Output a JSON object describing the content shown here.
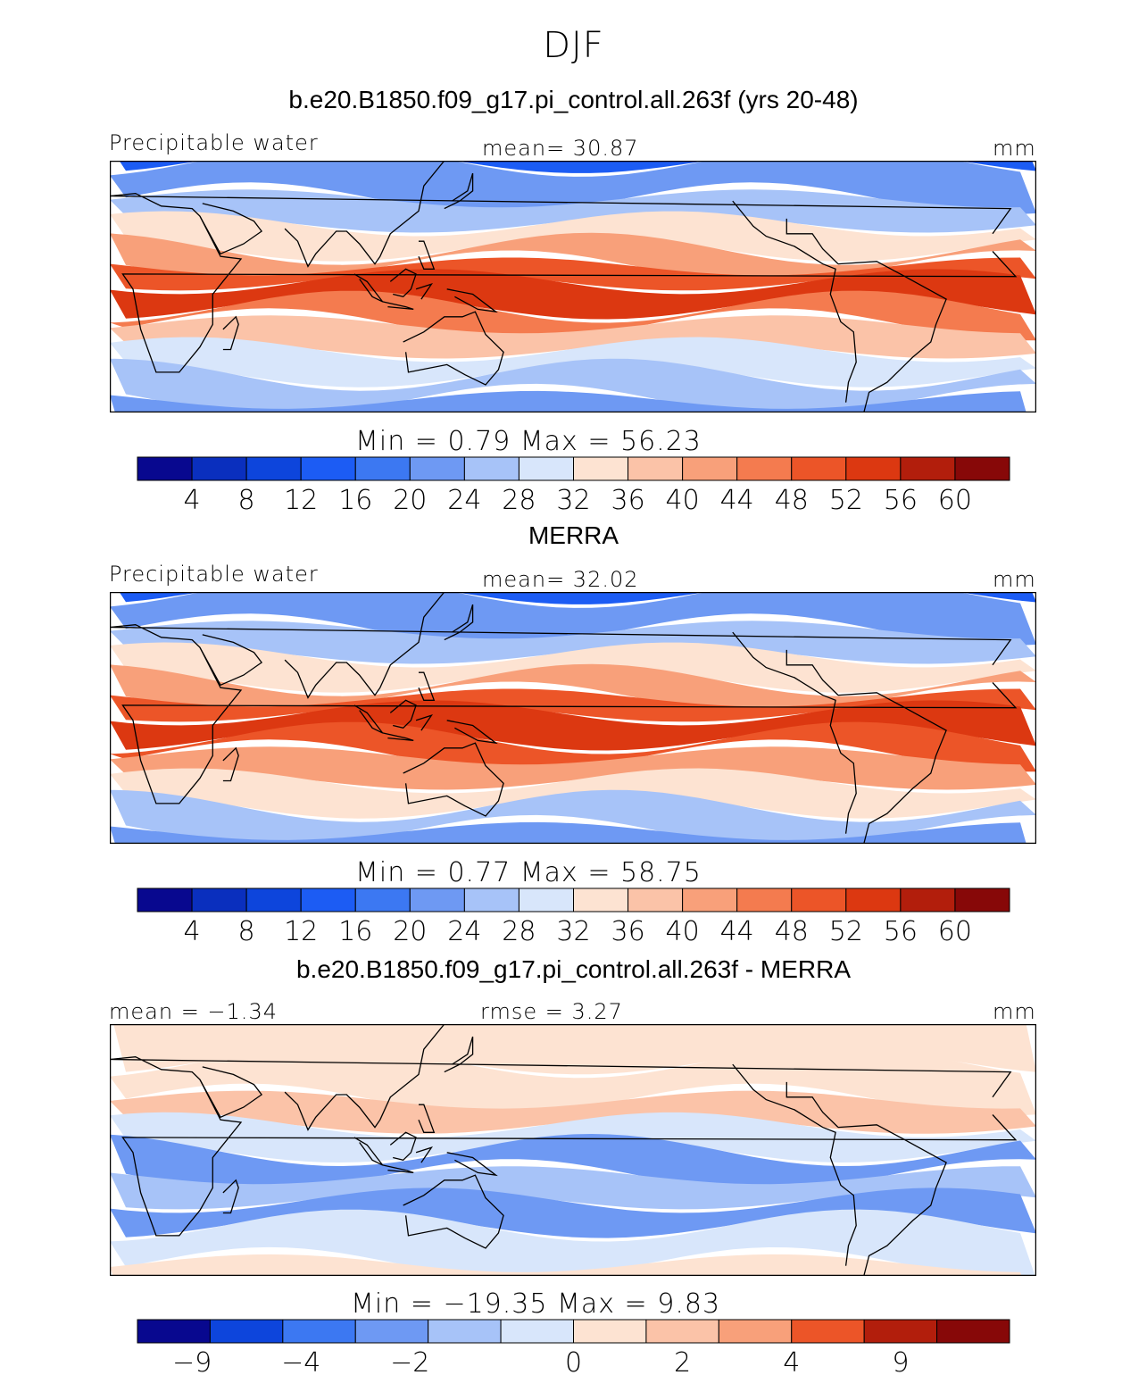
{
  "page_title": "DJF",
  "chart_data": [
    {
      "type": "heatmap",
      "title": "b.e20.B1850.f09_g17.pi_control.all.263f (yrs 20-48)",
      "variable": "Precipitable water",
      "units": "mm",
      "stat_left": "",
      "stat_center": "mean=   30.87",
      "min_max": "Min  =     0.79  Max  =    56.23",
      "levels": [
        "4",
        "8",
        "12",
        "16",
        "20",
        "24",
        "28",
        "32",
        "36",
        "40",
        "44",
        "48",
        "52",
        "56",
        "60"
      ],
      "colors": [
        "#08088f",
        "#0a2fbe",
        "#0d45dc",
        "#1c5cf4",
        "#3c78f2",
        "#6e99f3",
        "#a7c3f8",
        "#d8e6fb",
        "#fde3d2",
        "#fbc3a8",
        "#f8a07a",
        "#f47b4f",
        "#ec5528",
        "#dc3811",
        "#b21e0c",
        "#870808"
      ],
      "bands": [
        {
          "lat": 90,
          "color": 2
        },
        {
          "lat": 70,
          "color": 3
        },
        {
          "lat": 50,
          "color": 5
        },
        {
          "lat": 35,
          "color": 6
        },
        {
          "lat": 25,
          "color": 8
        },
        {
          "lat": 15,
          "color": 10
        },
        {
          "lat": 8,
          "color": 12
        },
        {
          "lat": 2,
          "color": 13
        },
        {
          "lat": -8,
          "color": 11
        },
        {
          "lat": -15,
          "color": 9
        },
        {
          "lat": -25,
          "color": 7
        },
        {
          "lat": -35,
          "color": 6
        },
        {
          "lat": -45,
          "color": 5
        }
      ]
    },
    {
      "type": "heatmap",
      "title": "MERRA",
      "variable": "Precipitable water",
      "units": "mm",
      "stat_left": "",
      "stat_center": "mean=   32.02",
      "min_max": "Min  =     0.77  Max  =    58.75",
      "levels": [
        "4",
        "8",
        "12",
        "16",
        "20",
        "24",
        "28",
        "32",
        "36",
        "40",
        "44",
        "48",
        "52",
        "56",
        "60"
      ],
      "colors": [
        "#08088f",
        "#0a2fbe",
        "#0d45dc",
        "#1c5cf4",
        "#3c78f2",
        "#6e99f3",
        "#a7c3f8",
        "#d8e6fb",
        "#fde3d2",
        "#fbc3a8",
        "#f8a07a",
        "#f47b4f",
        "#ec5528",
        "#dc3811",
        "#b21e0c",
        "#870808"
      ],
      "bands": [
        {
          "lat": 90,
          "color": 2
        },
        {
          "lat": 70,
          "color": 3
        },
        {
          "lat": 50,
          "color": 5
        },
        {
          "lat": 35,
          "color": 6
        },
        {
          "lat": 25,
          "color": 8
        },
        {
          "lat": 15,
          "color": 10
        },
        {
          "lat": 8,
          "color": 12
        },
        {
          "lat": 2,
          "color": 13
        },
        {
          "lat": -8,
          "color": 12
        },
        {
          "lat": -15,
          "color": 10
        },
        {
          "lat": -25,
          "color": 8
        },
        {
          "lat": -35,
          "color": 6
        },
        {
          "lat": -45,
          "color": 5
        }
      ]
    },
    {
      "type": "heatmap",
      "title": "b.e20.B1850.f09_g17.pi_control.all.263f - MERRA",
      "variable": "",
      "units": "mm",
      "stat_left": "mean  =   −1.34",
      "stat_center": "rmse  =     3.27",
      "min_max": "Min  =  −19.35  Max  =     9.83",
      "levels": [
        "−9",
        "−4",
        "−2",
        "0",
        "2",
        "4",
        "9"
      ],
      "colors": [
        "#08088f",
        "#0d45dc",
        "#3c78f2",
        "#6e99f3",
        "#a7c3f8",
        "#d8e6fb",
        "#fde3d2",
        "#fbc3a8",
        "#f8a07a",
        "#ec5528",
        "#b21e0c",
        "#870808"
      ],
      "tick_positions": [
        1,
        3,
        5,
        8,
        10,
        12,
        14
      ],
      "bands": [
        {
          "lat": 90,
          "color": 7
        },
        {
          "lat": 60,
          "color": 6
        },
        {
          "lat": 35,
          "color": 6
        },
        {
          "lat": 20,
          "color": 7
        },
        {
          "lat": 10,
          "color": 5
        },
        {
          "lat": 0,
          "color": 3
        },
        {
          "lat": -10,
          "color": 4
        },
        {
          "lat": -20,
          "color": 3
        },
        {
          "lat": -30,
          "color": 5
        },
        {
          "lat": -45,
          "color": 6
        }
      ]
    }
  ]
}
